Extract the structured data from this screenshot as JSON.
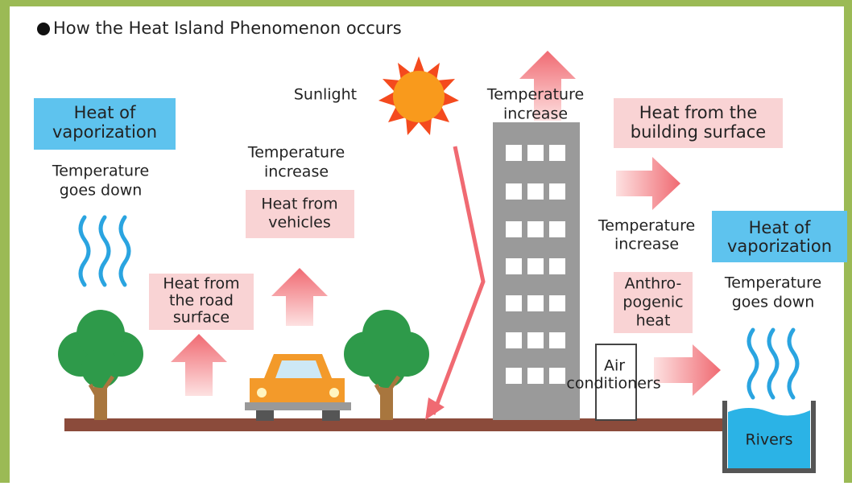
{
  "title": "How the Heat Island Phenomenon occurs",
  "labels": [
    {
      "lines": [
        "Heat of",
        "vaporization"
      ]
    },
    {
      "lines": [
        "Temperature",
        "goes down"
      ]
    },
    {
      "lines": [
        "Temperature",
        "increase"
      ]
    },
    {
      "lines": [
        "Heat from",
        "vehicles"
      ]
    },
    {
      "lines": [
        "Heat from",
        "the road",
        "surface"
      ]
    },
    {
      "lines": [
        "Sunlight"
      ]
    },
    {
      "lines": [
        "Temperature",
        "increase"
      ]
    },
    {
      "lines": [
        "Heat from the",
        "building surface"
      ]
    },
    {
      "lines": [
        "Temperature",
        "increase"
      ]
    },
    {
      "lines": [
        "Heat of",
        "vaporization"
      ]
    },
    {
      "lines": [
        "Anthro-",
        "pogenic",
        "heat"
      ]
    },
    {
      "lines": [
        "Temperature",
        "goes down"
      ]
    },
    {
      "lines": [
        "Air",
        "conditioners"
      ]
    },
    {
      "lines": [
        "Rivers"
      ]
    }
  ]
}
